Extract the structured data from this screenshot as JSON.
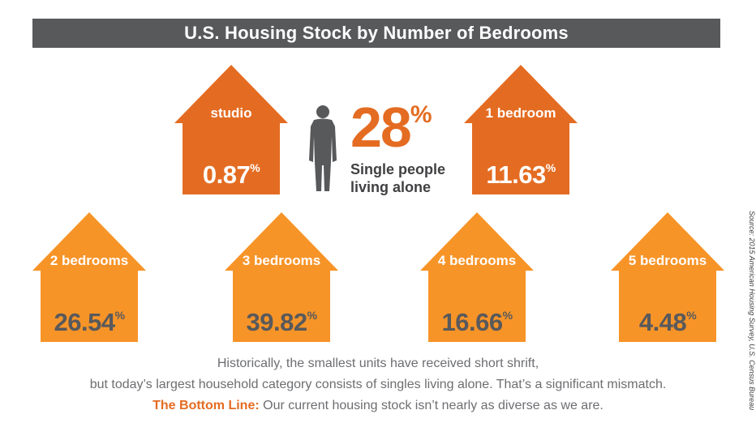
{
  "title": "U.S. Housing Stock by Number of Bedrooms",
  "chart_data": {
    "type": "bar",
    "title": "U.S. Housing Stock by Number of Bedrooms",
    "categories": [
      "studio",
      "1 bedroom",
      "2 bedrooms",
      "3 bedrooms",
      "4 bedrooms",
      "5 bedrooms"
    ],
    "values": [
      0.87,
      11.63,
      26.54,
      39.82,
      16.66,
      4.48
    ],
    "value_labels": [
      "0.87",
      "11.63",
      "26.54",
      "39.82",
      "16.66",
      "4.48"
    ],
    "unit": "%"
  },
  "callout": {
    "value": "28",
    "unit": "%",
    "label_line1": "Single people",
    "label_line2": "living alone",
    "icon": "person-silhouette-icon"
  },
  "footer": {
    "line1": "Historically, the smallest units have received short shrift,",
    "line2": "but today’s largest household category consists of singles living alone. That’s a significant mismatch.",
    "bottom_line_label": "The Bottom Line:",
    "bottom_line_text": " Our current housing stock isn’t nearly as diverse as we are."
  },
  "source": "Source: 2015 American Housing Survey, U.S. Census Bureau",
  "colors": {
    "dark_orange": "#e46c22",
    "light_orange": "#f79428",
    "gray": "#58595b",
    "title_bar": "#58595b"
  },
  "icons": {
    "house": "house-icon"
  }
}
